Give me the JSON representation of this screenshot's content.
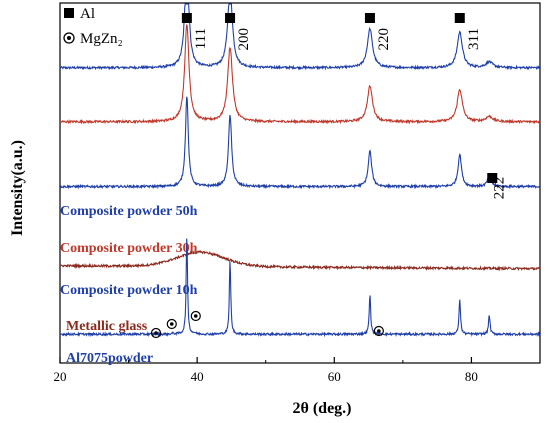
{
  "chart_data": {
    "type": "line",
    "xlabel": "2θ (deg.)",
    "ylabel": "Intensity(a.u.)",
    "xlim": [
      20,
      90
    ],
    "x_ticks": [
      20,
      40,
      60,
      80
    ],
    "x_tick_labels": [
      "20",
      "40",
      "60",
      "80"
    ],
    "legend": [
      {
        "marker": "filled-square",
        "label": "Al"
      },
      {
        "marker": "star-circle",
        "label": "MgZn₂"
      }
    ],
    "series": [
      {
        "name": "Composite powder 50h",
        "color": "#1f3fa8",
        "baseline": 0.82,
        "peaks": [
          [
            38.5,
            6.5,
            0.35
          ],
          [
            44.8,
            5.0,
            0.4
          ],
          [
            65.2,
            2.4,
            0.45
          ],
          [
            78.3,
            2.2,
            0.45
          ],
          [
            82.6,
            0.35,
            0.6
          ]
        ]
      },
      {
        "name": "Composite powder 30h",
        "color": "#c0392b",
        "baseline": 0.67,
        "peaks": [
          [
            38.5,
            6.0,
            0.38
          ],
          [
            44.8,
            4.6,
            0.42
          ],
          [
            65.2,
            2.2,
            0.45
          ],
          [
            78.3,
            2.0,
            0.45
          ],
          [
            82.6,
            0.32,
            0.6
          ]
        ]
      },
      {
        "name": "Composite powder 10h",
        "color": "#1f3fa8",
        "baseline": 0.49,
        "peaks": [
          [
            38.5,
            5.6,
            0.25
          ],
          [
            44.8,
            4.4,
            0.28
          ],
          [
            65.2,
            2.2,
            0.3
          ],
          [
            78.3,
            2.0,
            0.3
          ],
          [
            82.6,
            0.6,
            0.35
          ]
        ]
      },
      {
        "name": "Metallic glass",
        "color": "#8b2a1e",
        "baseline": 0.27,
        "peaks": [
          [
            40.5,
            0.12,
            3.2
          ]
        ]
      },
      {
        "name": "Al7075powder",
        "color": "#1f3fa8",
        "baseline": 0.08,
        "peaks": [
          [
            38.5,
            6.0,
            0.12
          ],
          [
            44.8,
            4.6,
            0.12
          ],
          [
            65.2,
            2.4,
            0.13
          ],
          [
            78.3,
            2.2,
            0.13
          ],
          [
            82.6,
            1.2,
            0.13
          ],
          [
            36.5,
            0.05,
            0.2
          ],
          [
            39.6,
            0.05,
            0.2
          ]
        ]
      }
    ],
    "peak_annotations": [
      {
        "phase": "Al",
        "x": 38.5,
        "label": "111"
      },
      {
        "phase": "Al",
        "x": 44.8,
        "label": "200"
      },
      {
        "phase": "Al",
        "x": 65.2,
        "label": "220"
      },
      {
        "phase": "Al",
        "x": 78.3,
        "label": "311"
      },
      {
        "phase": "Al",
        "x": 82.6,
        "label": "222"
      }
    ],
    "mgzn2_markers": [
      34.0,
      36.3,
      39.8,
      66.5
    ]
  }
}
